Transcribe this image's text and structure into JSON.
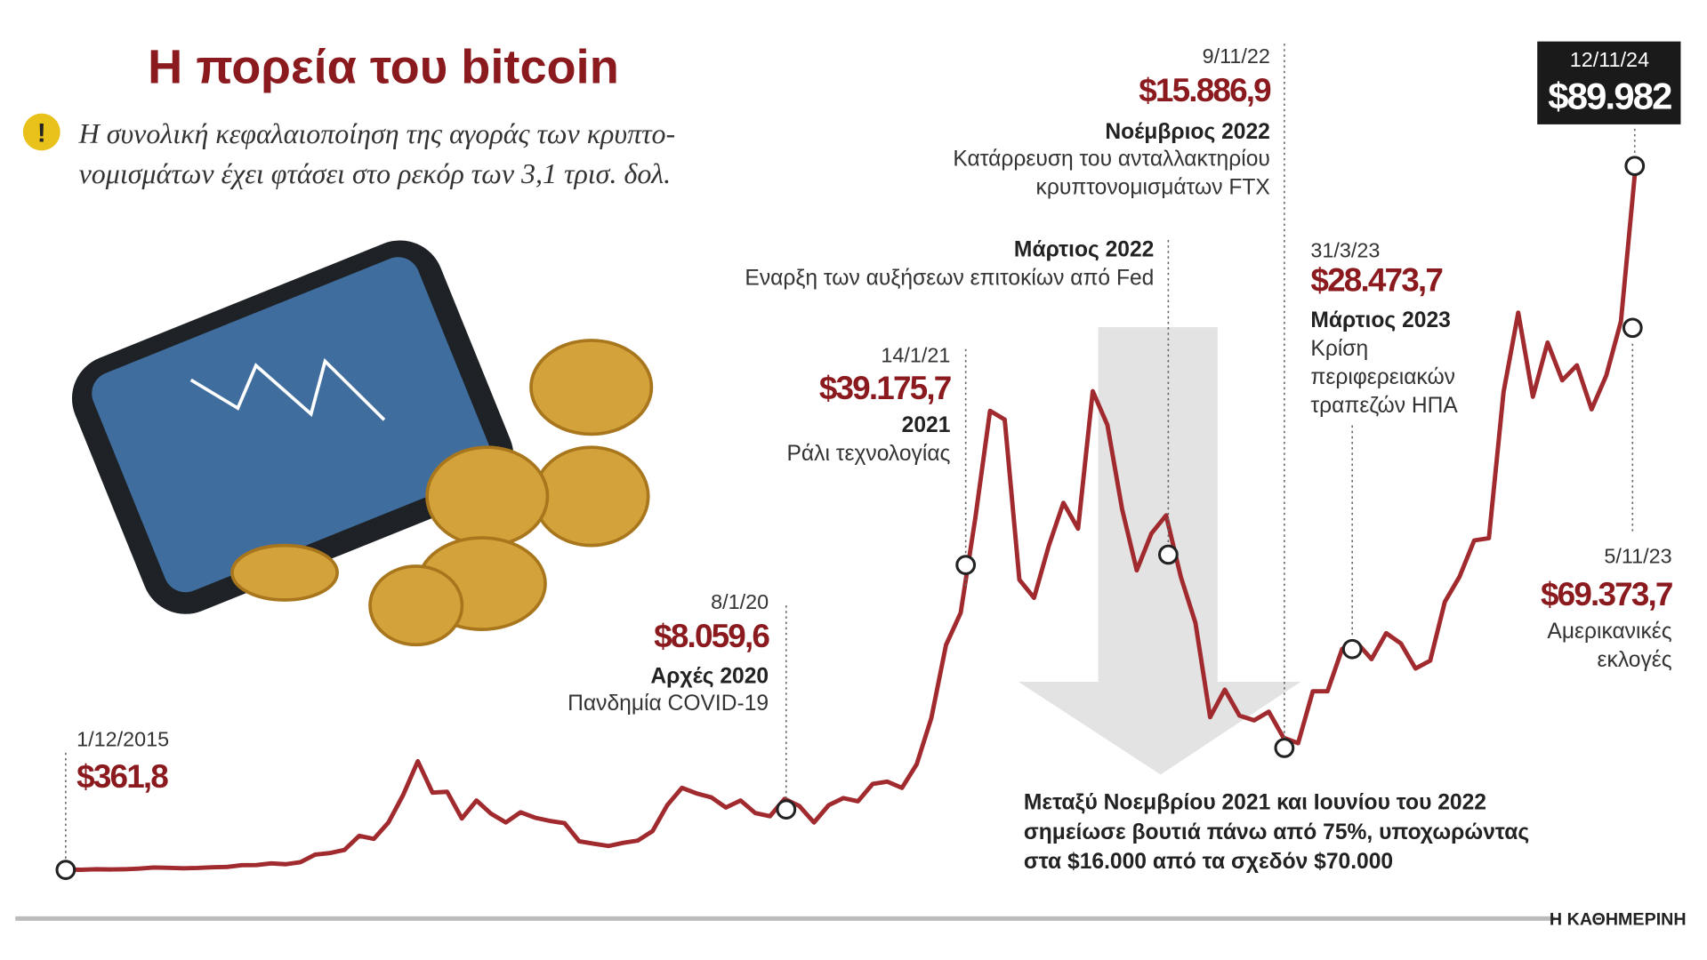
{
  "chart_data": {
    "type": "line",
    "title": "Η πορεία του bitcoin",
    "subtitle": [
      "Η συνολική κεφαλαιοποίηση της αγοράς των κρυπτο-",
      "νομισμάτων έχει φτάσει στο ρεκόρ των 3,1 τρισ. δολ."
    ],
    "color": "#a02a2e",
    "ylim": [
      0,
      100000
    ],
    "values": [
      430,
      370,
      440,
      420,
      450,
      530,
      670,
      620,
      570,
      610,
      700,
      740,
      960,
      970,
      1190,
      1080,
      1350,
      2300,
      2500,
      2900,
      4700,
      4300,
      6400,
      9900,
      14200,
      10200,
      10300,
      6900,
      9200,
      7500,
      6400,
      7700,
      7000,
      6600,
      6300,
      4000,
      3700,
      3400,
      3800,
      4100,
      5300,
      8600,
      10800,
      10100,
      9600,
      8300,
      9200,
      7600,
      7200,
      9400,
      8500,
      6400,
      8600,
      9500,
      9100,
      11300,
      11600,
      10800,
      13800,
      19700,
      29000,
      33100,
      45200,
      58800,
      57700,
      37300,
      35000,
      41600,
      47100,
      43800,
      61300,
      57000,
      46300,
      38500,
      43200,
      45500,
      37700,
      31800,
      19800,
      23300,
      20000,
      19400,
      20500,
      17200,
      16500,
      23100,
      23100,
      28500,
      29300,
      27200,
      30500,
      29200,
      26000,
      27000,
      34500,
      37700,
      42300,
      42600,
      61200,
      71300,
      60600,
      67500,
      62700,
      64600,
      59000,
      63300,
      70200,
      89982
    ],
    "annotations": [
      {
        "date": "1/12/2015",
        "value": 361.8,
        "value_label": "$361,8"
      },
      {
        "date": "8/1/20",
        "value": 8059.6,
        "value_label": "$8.059,6",
        "title": "Αρχές 2020",
        "text": [
          "Πανδημία COVID-19"
        ]
      },
      {
        "date": "14/1/21",
        "value": 39175.7,
        "value_label": "$39.175,7",
        "title": "2021",
        "text": [
          "Ράλι τεχνολογίας"
        ]
      },
      {
        "value": 40500,
        "title": "Μάρτιος 2022",
        "text": [
          "Εναρξη των αυξήσεων επιτοκίων από Fed"
        ]
      },
      {
        "date": "9/11/22",
        "value": 15886.9,
        "value_label": "$15.886,9",
        "title": "Νοέμβριος 2022",
        "text": [
          "Κατάρρευση του ανταλλακτηρίου",
          "κρυπτονομισμάτων FTX"
        ]
      },
      {
        "date": "31/3/23",
        "value": 28473.7,
        "value_label": "$28.473,7",
        "title": "Μάρτιος 2023",
        "text": [
          "Κρίση",
          "περιφερειακών",
          "τραπεζών ΗΠΑ"
        ]
      },
      {
        "date": "5/11/23",
        "value": 69373.7,
        "value_label": "$69.373,7",
        "text": [
          "Αμερικανικές",
          "εκλογές"
        ]
      },
      {
        "date": "12/11/24",
        "value": 89982,
        "value_label": "$89.982"
      }
    ],
    "note": [
      "Μεταξύ Νοεμβρίου 2021 και Ιουνίου του 2022",
      "σημείωσε βουτιά πάνω από 75%, υποχωρώντας",
      "στα $16.000 από τα σχεδόν $70.000"
    ],
    "source": "Η ΚΑΘΗΜΕΡΙΝΗ"
  }
}
